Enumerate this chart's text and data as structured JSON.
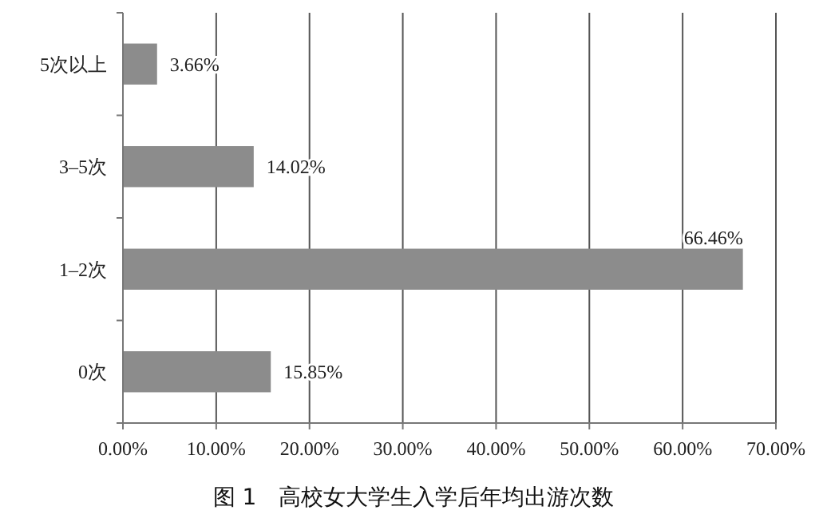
{
  "chart_data": {
    "type": "bar",
    "orientation": "horizontal",
    "title": "图 1　高校女大学生入学后年均出游次数",
    "categories": [
      "5次以上",
      "3–5次",
      "1–2次",
      "0次"
    ],
    "values": [
      3.66,
      14.02,
      66.46,
      15.85
    ],
    "value_labels": [
      "3.66%",
      "14.02%",
      "66.46%",
      "15.85%"
    ],
    "color": "#8c8c8c",
    "xlim": [
      0,
      70
    ],
    "xticks": [
      {
        "value": 0,
        "label": "0.00%"
      },
      {
        "value": 10,
        "label": "10.00%"
      },
      {
        "value": 20,
        "label": "20.00%"
      },
      {
        "value": 30,
        "label": "30.00%"
      },
      {
        "value": 40,
        "label": "40.00%"
      },
      {
        "value": 50,
        "label": "50.00%"
      },
      {
        "value": 60,
        "label": "60.00%"
      },
      {
        "value": 70,
        "label": "70.00%"
      }
    ],
    "grid": "x"
  }
}
